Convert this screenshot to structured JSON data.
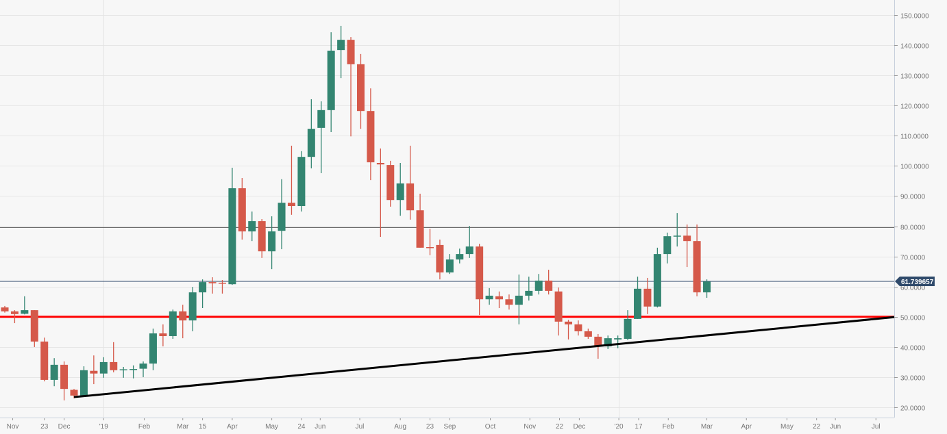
{
  "chart_data": {
    "type": "candlestick",
    "title": "",
    "interval": "weekly",
    "ylim": [
      17,
      155
    ],
    "y_ticks": [
      "20.0000",
      "30.0000",
      "40.0000",
      "50.0000",
      "60.0000",
      "70.0000",
      "80.0000",
      "90.0000",
      "100.0000",
      "110.0000",
      "120.0000",
      "130.0000",
      "140.0000",
      "150.0000"
    ],
    "y_tick_values": [
      20,
      30,
      40,
      50,
      60,
      70,
      80,
      90,
      100,
      110,
      120,
      130,
      140,
      150
    ],
    "x_labels": [
      {
        "text": "Nov",
        "index": 0.8
      },
      {
        "text": "23",
        "index": 4.0
      },
      {
        "text": "Dec",
        "index": 6.0
      },
      {
        "text": "'19",
        "index": 10.0
      },
      {
        "text": "Feb",
        "index": 14.1
      },
      {
        "text": "Mar",
        "index": 18.0
      },
      {
        "text": "15",
        "index": 20.0
      },
      {
        "text": "Apr",
        "index": 23.0
      },
      {
        "text": "May",
        "index": 27.0
      },
      {
        "text": "24",
        "index": 30.0
      },
      {
        "text": "Jun",
        "index": 31.9
      },
      {
        "text": "Jul",
        "index": 35.9
      },
      {
        "text": "Aug",
        "index": 40.0
      },
      {
        "text": "23",
        "index": 43.0
      },
      {
        "text": "Sep",
        "index": 45.0
      },
      {
        "text": "Oct",
        "index": 49.1
      },
      {
        "text": "Nov",
        "index": 53.1
      },
      {
        "text": "22",
        "index": 56.1
      },
      {
        "text": "Dec",
        "index": 58.1
      },
      {
        "text": "'20",
        "index": 62.1
      },
      {
        "text": "17",
        "index": 64.1
      },
      {
        "text": "Feb",
        "index": 67.1
      },
      {
        "text": "Mar",
        "index": 71.0
      },
      {
        "text": "Apr",
        "index": 75.0
      },
      {
        "text": "May",
        "index": 79.1
      },
      {
        "text": "22",
        "index": 82.1
      },
      {
        "text": "Jun",
        "index": 84.0
      },
      {
        "text": "Jul",
        "index": 88.1
      }
    ],
    "year_gridlines": [
      10.0,
      62.1
    ],
    "candles": [
      [
        53.1,
        53.6,
        51.4,
        51.8
      ],
      [
        51.8,
        52.2,
        47.9,
        50.9
      ],
      [
        51.0,
        56.8,
        50.8,
        52.2
      ],
      [
        52.2,
        52.2,
        40.0,
        41.8
      ],
      [
        41.8,
        43.1,
        28.6,
        29.1
      ],
      [
        29.1,
        36.3,
        27.0,
        34.1
      ],
      [
        34.1,
        35.2,
        22.3,
        26.1
      ],
      [
        25.8,
        26.1,
        23.0,
        23.9
      ],
      [
        23.9,
        33.6,
        23.5,
        32.3
      ],
      [
        32.1,
        37.2,
        27.7,
        31.2
      ],
      [
        31.2,
        36.6,
        29.8,
        35.0
      ],
      [
        35.0,
        41.6,
        31.6,
        32.3
      ],
      [
        32.4,
        33.4,
        29.8,
        32.6
      ],
      [
        32.5,
        33.9,
        29.6,
        32.7
      ],
      [
        32.8,
        35.2,
        30.0,
        34.5
      ],
      [
        34.5,
        46.1,
        32.3,
        44.5
      ],
      [
        44.5,
        47.5,
        40.2,
        43.6
      ],
      [
        43.6,
        52.4,
        42.7,
        51.8
      ],
      [
        51.8,
        54.0,
        42.9,
        48.8
      ],
      [
        48.8,
        59.9,
        45.2,
        58.1
      ],
      [
        58.1,
        62.4,
        52.9,
        61.5
      ],
      [
        61.5,
        63.1,
        57.7,
        61.1
      ],
      [
        61.3,
        62.2,
        57.7,
        61.0
      ],
      [
        60.8,
        99.4,
        60.6,
        92.6
      ],
      [
        92.6,
        96.0,
        75.6,
        78.3
      ],
      [
        78.3,
        84.9,
        75.1,
        81.7
      ],
      [
        81.7,
        82.4,
        69.5,
        71.7
      ],
      [
        71.7,
        83.3,
        65.8,
        78.3
      ],
      [
        78.5,
        95.6,
        72.4,
        87.8
      ],
      [
        87.8,
        106.7,
        83.8,
        86.7
      ],
      [
        86.7,
        104.9,
        84.9,
        103.0
      ],
      [
        103.0,
        122.1,
        99.2,
        112.3
      ],
      [
        112.6,
        121.4,
        97.6,
        118.5
      ],
      [
        118.5,
        144.3,
        111.2,
        138.2
      ],
      [
        138.4,
        146.4,
        129.1,
        141.8
      ],
      [
        141.8,
        142.7,
        109.8,
        133.7
      ],
      [
        133.7,
        137.1,
        112.3,
        118.2
      ],
      [
        118.2,
        125.7,
        95.3,
        101.2
      ],
      [
        101.0,
        105.8,
        76.5,
        100.5
      ],
      [
        100.3,
        101.7,
        86.5,
        88.7
      ],
      [
        88.7,
        101.0,
        83.5,
        94.2
      ],
      [
        94.2,
        106.7,
        82.2,
        85.3
      ],
      [
        85.3,
        90.8,
        72.9,
        72.9
      ],
      [
        73.1,
        79.2,
        70.4,
        72.9
      ],
      [
        73.8,
        75.6,
        62.4,
        64.7
      ],
      [
        64.7,
        70.8,
        64.2,
        69.0
      ],
      [
        69.0,
        72.6,
        67.7,
        70.8
      ],
      [
        70.8,
        80.1,
        69.5,
        73.3
      ],
      [
        73.3,
        74.2,
        50.6,
        55.8
      ],
      [
        55.8,
        59.5,
        54.0,
        57.0
      ],
      [
        56.8,
        58.4,
        52.9,
        55.8
      ],
      [
        55.8,
        57.4,
        52.4,
        54.0
      ],
      [
        54.0,
        64.0,
        47.5,
        57.0
      ],
      [
        57.0,
        63.3,
        55.4,
        58.6
      ],
      [
        58.6,
        64.2,
        57.4,
        62.0
      ],
      [
        62.0,
        65.6,
        57.4,
        58.6
      ],
      [
        58.4,
        59.7,
        43.8,
        48.4
      ],
      [
        48.4,
        49.0,
        42.5,
        47.5
      ],
      [
        47.5,
        48.8,
        43.8,
        45.2
      ],
      [
        45.2,
        46.1,
        42.7,
        43.4
      ],
      [
        43.4,
        44.3,
        36.1,
        40.2
      ],
      [
        40.2,
        43.8,
        39.3,
        42.9
      ],
      [
        42.5,
        43.8,
        39.6,
        42.9
      ],
      [
        42.7,
        52.2,
        42.3,
        49.3
      ],
      [
        49.3,
        63.3,
        49.3,
        59.3
      ],
      [
        59.3,
        62.9,
        50.9,
        53.4
      ],
      [
        53.4,
        72.9,
        53.1,
        70.8
      ],
      [
        70.8,
        77.9,
        67.7,
        76.7
      ],
      [
        76.7,
        84.4,
        73.3,
        76.9
      ],
      [
        76.9,
        80.6,
        66.5,
        75.1
      ],
      [
        75.1,
        80.6,
        56.8,
        58.1
      ],
      [
        58.1,
        62.4,
        56.3,
        61.7
      ]
    ],
    "candle_format": [
      "open",
      "high",
      "low",
      "close"
    ],
    "horizontal_lines": [
      {
        "name": "resistance-line",
        "value": 79.6,
        "color": "#555555"
      },
      {
        "name": "support-line",
        "value": 50.0,
        "color": "#ff0000"
      }
    ],
    "trendline": {
      "from": {
        "index": 7,
        "value": 23.4
      },
      "to": {
        "index": 89.95,
        "value": 49.9
      },
      "color": "#000000"
    },
    "last_price": {
      "value": 61.739657,
      "label": "61.739657",
      "color": "#2f4a6b"
    },
    "colors": {
      "up": "#338571",
      "down": "#d5594a",
      "grid": "#e6e6e6",
      "axis_text": "#777777"
    }
  }
}
